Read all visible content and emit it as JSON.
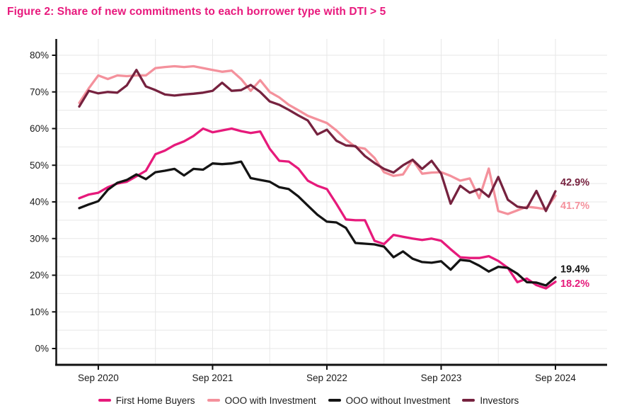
{
  "title": {
    "text": "Figure 2: Share of new commitments to each borrower type with DTI > 5",
    "color": "#E8197D"
  },
  "chart_data": {
    "type": "line",
    "x_monthly": [
      "2020-07",
      "2020-08",
      "2020-09",
      "2020-10",
      "2020-11",
      "2020-12",
      "2021-01",
      "2021-02",
      "2021-03",
      "2021-04",
      "2021-05",
      "2021-06",
      "2021-07",
      "2021-08",
      "2021-09",
      "2021-10",
      "2021-11",
      "2021-12",
      "2022-01",
      "2022-02",
      "2022-03",
      "2022-04",
      "2022-05",
      "2022-06",
      "2022-07",
      "2022-08",
      "2022-09",
      "2022-10",
      "2022-11",
      "2022-12",
      "2023-01",
      "2023-02",
      "2023-03",
      "2023-04",
      "2023-05",
      "2023-06",
      "2023-07",
      "2023-08",
      "2023-09",
      "2023-10",
      "2023-11",
      "2023-12",
      "2024-01",
      "2024-02",
      "2024-03",
      "2024-04",
      "2024-05",
      "2024-06",
      "2024-07",
      "2024-08",
      "2024-09"
    ],
    "x_tick_labels": [
      "Sep 2020",
      "Sep 2021",
      "Sep 2022",
      "Sep 2023",
      "Sep 2024"
    ],
    "x_tick_month_indices": [
      2,
      14,
      26,
      38,
      50
    ],
    "y_tick_labels": [
      "0%",
      "10%",
      "20%",
      "30%",
      "40%",
      "50%",
      "60%",
      "70%",
      "80%"
    ],
    "y_tick_values": [
      0,
      10,
      20,
      30,
      40,
      50,
      60,
      70,
      80
    ],
    "ylim": [
      0,
      80
    ],
    "grid": {
      "horizontal_step_pct": 5,
      "vertical_step_months": 6,
      "color": "#e7e7e7"
    },
    "legend_position": "bottom",
    "series": [
      {
        "name": "First Home Buyers",
        "color": "#E61A7B",
        "values": [
          41.0,
          42.0,
          42.5,
          44.0,
          45.0,
          45.5,
          47.0,
          48.5,
          53.0,
          54.0,
          55.5,
          56.5,
          58.0,
          60.0,
          59.0,
          59.5,
          60.0,
          59.3,
          58.8,
          59.2,
          54.5,
          51.2,
          51.0,
          49.1,
          45.8,
          44.4,
          43.5,
          39.5,
          35.2,
          35.0,
          35.0,
          29.4,
          28.5,
          31.0,
          30.5,
          30.0,
          29.6,
          30.0,
          29.4,
          27.1,
          24.9,
          24.7,
          24.7,
          25.2,
          23.9,
          22.0,
          18.1,
          19.1,
          17.3,
          16.4,
          18.2
        ]
      },
      {
        "name": "OOO with Investment",
        "color": "#F4919C",
        "values": [
          67.0,
          71.0,
          74.5,
          73.5,
          74.5,
          74.3,
          74.5,
          74.5,
          76.5,
          76.8,
          77.0,
          76.8,
          77.0,
          76.5,
          76.0,
          75.5,
          75.8,
          73.5,
          70.3,
          73.2,
          70.0,
          68.5,
          66.5,
          65.0,
          63.5,
          62.5,
          61.5,
          59.5,
          57.0,
          55.0,
          54.5,
          52.0,
          48.1,
          47.1,
          47.5,
          51.5,
          47.7,
          48.0,
          48.1,
          47.1,
          45.8,
          46.4,
          41.0,
          49.1,
          37.5,
          36.7,
          37.7,
          38.7,
          38.4,
          38.0,
          41.7
        ]
      },
      {
        "name": "OOO without Investment",
        "color": "#141414",
        "values": [
          38.3,
          39.3,
          40.2,
          43.3,
          45.2,
          46.0,
          47.5,
          46.2,
          48.1,
          48.5,
          49.0,
          47.2,
          49.0,
          48.8,
          50.5,
          50.3,
          50.5,
          51.0,
          46.5,
          46.0,
          45.5,
          44.0,
          43.5,
          41.5,
          39.0,
          36.5,
          34.6,
          34.4,
          32.9,
          28.8,
          28.6,
          28.4,
          27.8,
          24.9,
          26.5,
          24.5,
          23.6,
          23.4,
          23.8,
          21.5,
          24.2,
          23.9,
          22.6,
          21.0,
          22.3,
          22.0,
          20.4,
          18.1,
          18.0,
          17.2,
          19.4
        ]
      },
      {
        "name": "Investors",
        "color": "#76223F",
        "values": [
          66.0,
          70.3,
          69.6,
          70.0,
          69.8,
          71.8,
          76.0,
          71.5,
          70.5,
          69.3,
          69.0,
          69.3,
          69.5,
          69.8,
          70.3,
          72.5,
          70.3,
          70.5,
          71.9,
          70.0,
          67.4,
          66.5,
          65.1,
          63.6,
          62.2,
          58.4,
          59.7,
          56.7,
          55.4,
          55.2,
          52.5,
          50.6,
          49.0,
          48.0,
          50.0,
          51.5,
          49.0,
          51.2,
          47.7,
          39.5,
          44.4,
          42.5,
          43.5,
          41.4,
          46.8,
          40.6,
          38.7,
          38.3,
          43.0,
          37.5,
          42.9
        ]
      }
    ],
    "end_labels": [
      {
        "text": "42.9%",
        "series": "Investors",
        "color": "#76223F",
        "dy": -13
      },
      {
        "text": "41.7%",
        "series": "OOO with Investment",
        "color": "#F4919C",
        "dy": 14
      },
      {
        "text": "19.4%",
        "series": "OOO without Investment",
        "color": "#141414",
        "dy": -12
      },
      {
        "text": "18.2%",
        "series": "First Home Buyers",
        "color": "#E61A7B",
        "dy": 2
      }
    ]
  }
}
